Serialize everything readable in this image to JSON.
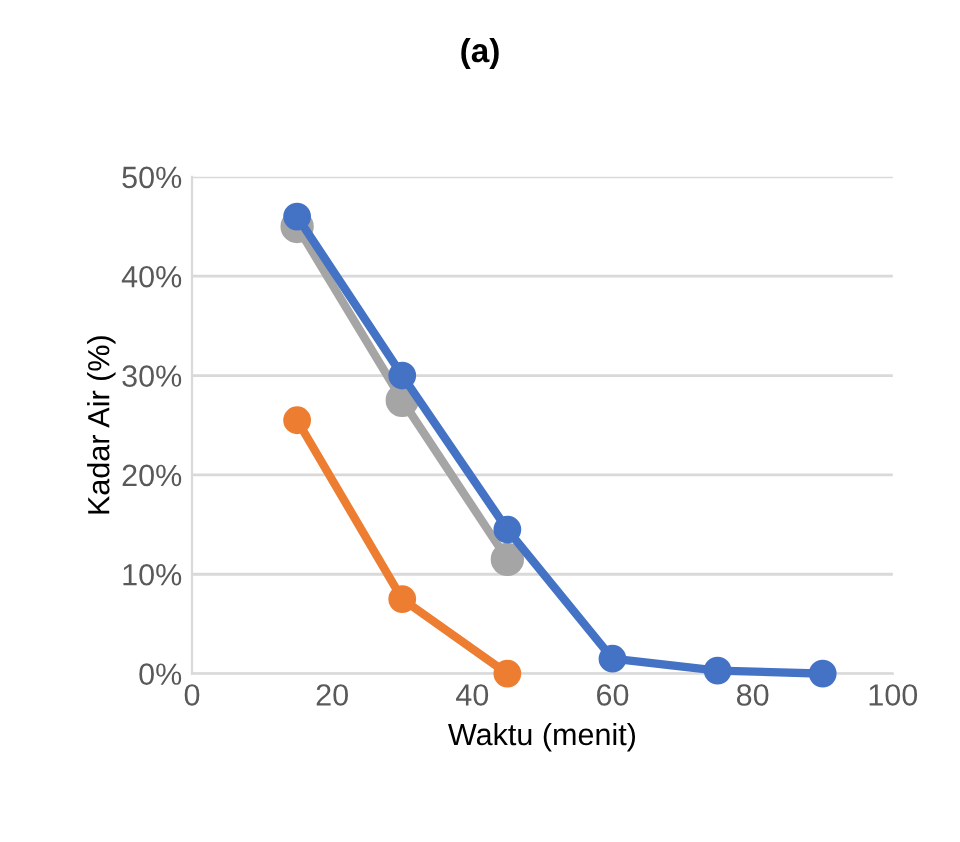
{
  "chart_data": {
    "type": "line",
    "title": "(a)",
    "xlabel": "Waktu (menit)",
    "ylabel": "Kadar Air (%)",
    "xlim": [
      0,
      100
    ],
    "xticks": [
      0,
      20,
      40,
      60,
      80,
      100
    ],
    "ylim": [
      0,
      50
    ],
    "yticks": [
      {
        "value": 0,
        "label": "0%"
      },
      {
        "value": 10,
        "label": "10%"
      },
      {
        "value": 20,
        "label": "20%"
      },
      {
        "value": 30,
        "label": "30%"
      },
      {
        "value": 40,
        "label": "40%"
      },
      {
        "value": 50,
        "label": "50%"
      }
    ],
    "grid": "y",
    "legend": false,
    "marker": "circle",
    "line_style": "solid",
    "series": [
      {
        "color": "#a5a5a5",
        "x": [
          15,
          30,
          45
        ],
        "values": [
          45,
          27.5,
          11.5
        ]
      },
      {
        "color": "#ed7d31",
        "x": [
          15,
          30,
          45
        ],
        "values": [
          25.5,
          7.5,
          0
        ]
      },
      {
        "color": "#4472c4",
        "x": [
          15,
          30,
          45,
          60,
          75,
          90
        ],
        "values": [
          46,
          30,
          14.5,
          1.5,
          0.3,
          0
        ]
      }
    ]
  }
}
